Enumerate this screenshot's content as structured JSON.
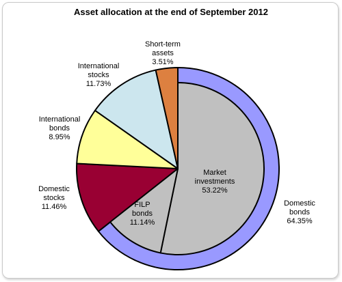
{
  "chart_data": {
    "type": "pie",
    "title": "Asset allocation at the end of September 2012",
    "series": [
      {
        "name": "Domestic bonds",
        "value": 64.35,
        "color": "#9999ff",
        "label": [
          "Domestic",
          "bonds",
          "64.35%"
        ]
      },
      {
        "name": "Domestic stocks",
        "value": 11.46,
        "color": "#990033",
        "label": [
          "Domestic",
          "stocks",
          "11.46%"
        ]
      },
      {
        "name": "International bonds",
        "value": 8.95,
        "color": "#ffff99",
        "label": [
          "International",
          "bonds",
          "8.95%"
        ]
      },
      {
        "name": "International stocks",
        "value": 11.73,
        "color": "#cce6ee",
        "label": [
          "International",
          "stocks",
          "11.73%"
        ]
      },
      {
        "name": "Short-term assets",
        "value": 3.51,
        "color": "#dd8040",
        "label": [
          "Short-term",
          "assets",
          "3.51%"
        ]
      }
    ],
    "inner_breakdown": {
      "parent": "Domestic bonds",
      "series": [
        {
          "name": "Market investments",
          "value": 53.22,
          "color": "#c0c0c0",
          "label": [
            "Market",
            "investments",
            "53.22%"
          ]
        },
        {
          "name": "FILP bonds",
          "value": 11.14,
          "color": "#c0c0c0",
          "label": [
            "FILP",
            "bonds",
            "11.14%"
          ]
        }
      ]
    }
  }
}
